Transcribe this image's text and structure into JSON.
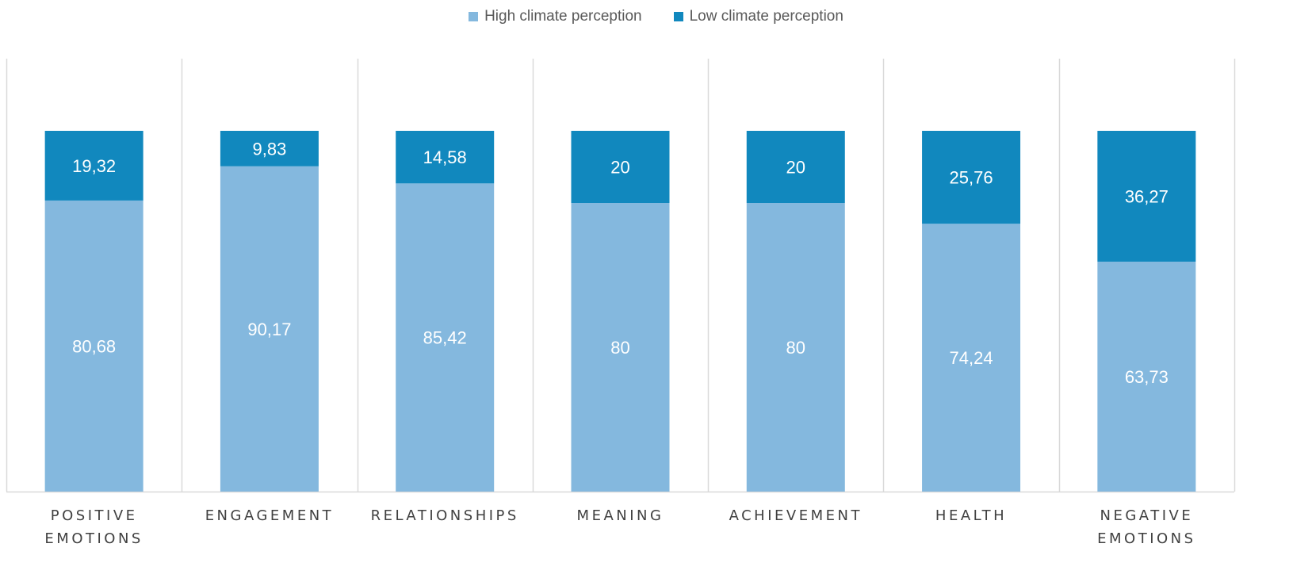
{
  "chart_data": {
    "type": "bar",
    "stacked": true,
    "percent_stacked": true,
    "categories": [
      [
        "POSITIVE",
        "EMOTIONS"
      ],
      [
        "ENGAGEMENT"
      ],
      [
        "RELATIONSHIPS"
      ],
      [
        "MEANING"
      ],
      [
        "ACHIEVEMENT"
      ],
      [
        "HEALTH"
      ],
      [
        "NEGATIVE",
        "EMOTIONS"
      ]
    ],
    "series": [
      {
        "name": "High climate perception",
        "color": "#84b8de",
        "values": [
          80.68,
          90.17,
          85.42,
          80,
          80,
          74.24,
          63.73
        ],
        "labels": [
          "80,68",
          "90,17",
          "85,42",
          "80",
          "80",
          "74,24",
          "63,73"
        ]
      },
      {
        "name": "Low climate perception",
        "color": "#1188be",
        "values": [
          19.32,
          9.83,
          14.58,
          20,
          20,
          25.76,
          36.27
        ],
        "labels": [
          "19,32",
          "9,83",
          "14,58",
          "20",
          "20",
          "25,76",
          "36,27"
        ]
      }
    ],
    "ylim": [
      0,
      100
    ],
    "legend_position": "top",
    "gridlines": "vertical separators between categories"
  }
}
